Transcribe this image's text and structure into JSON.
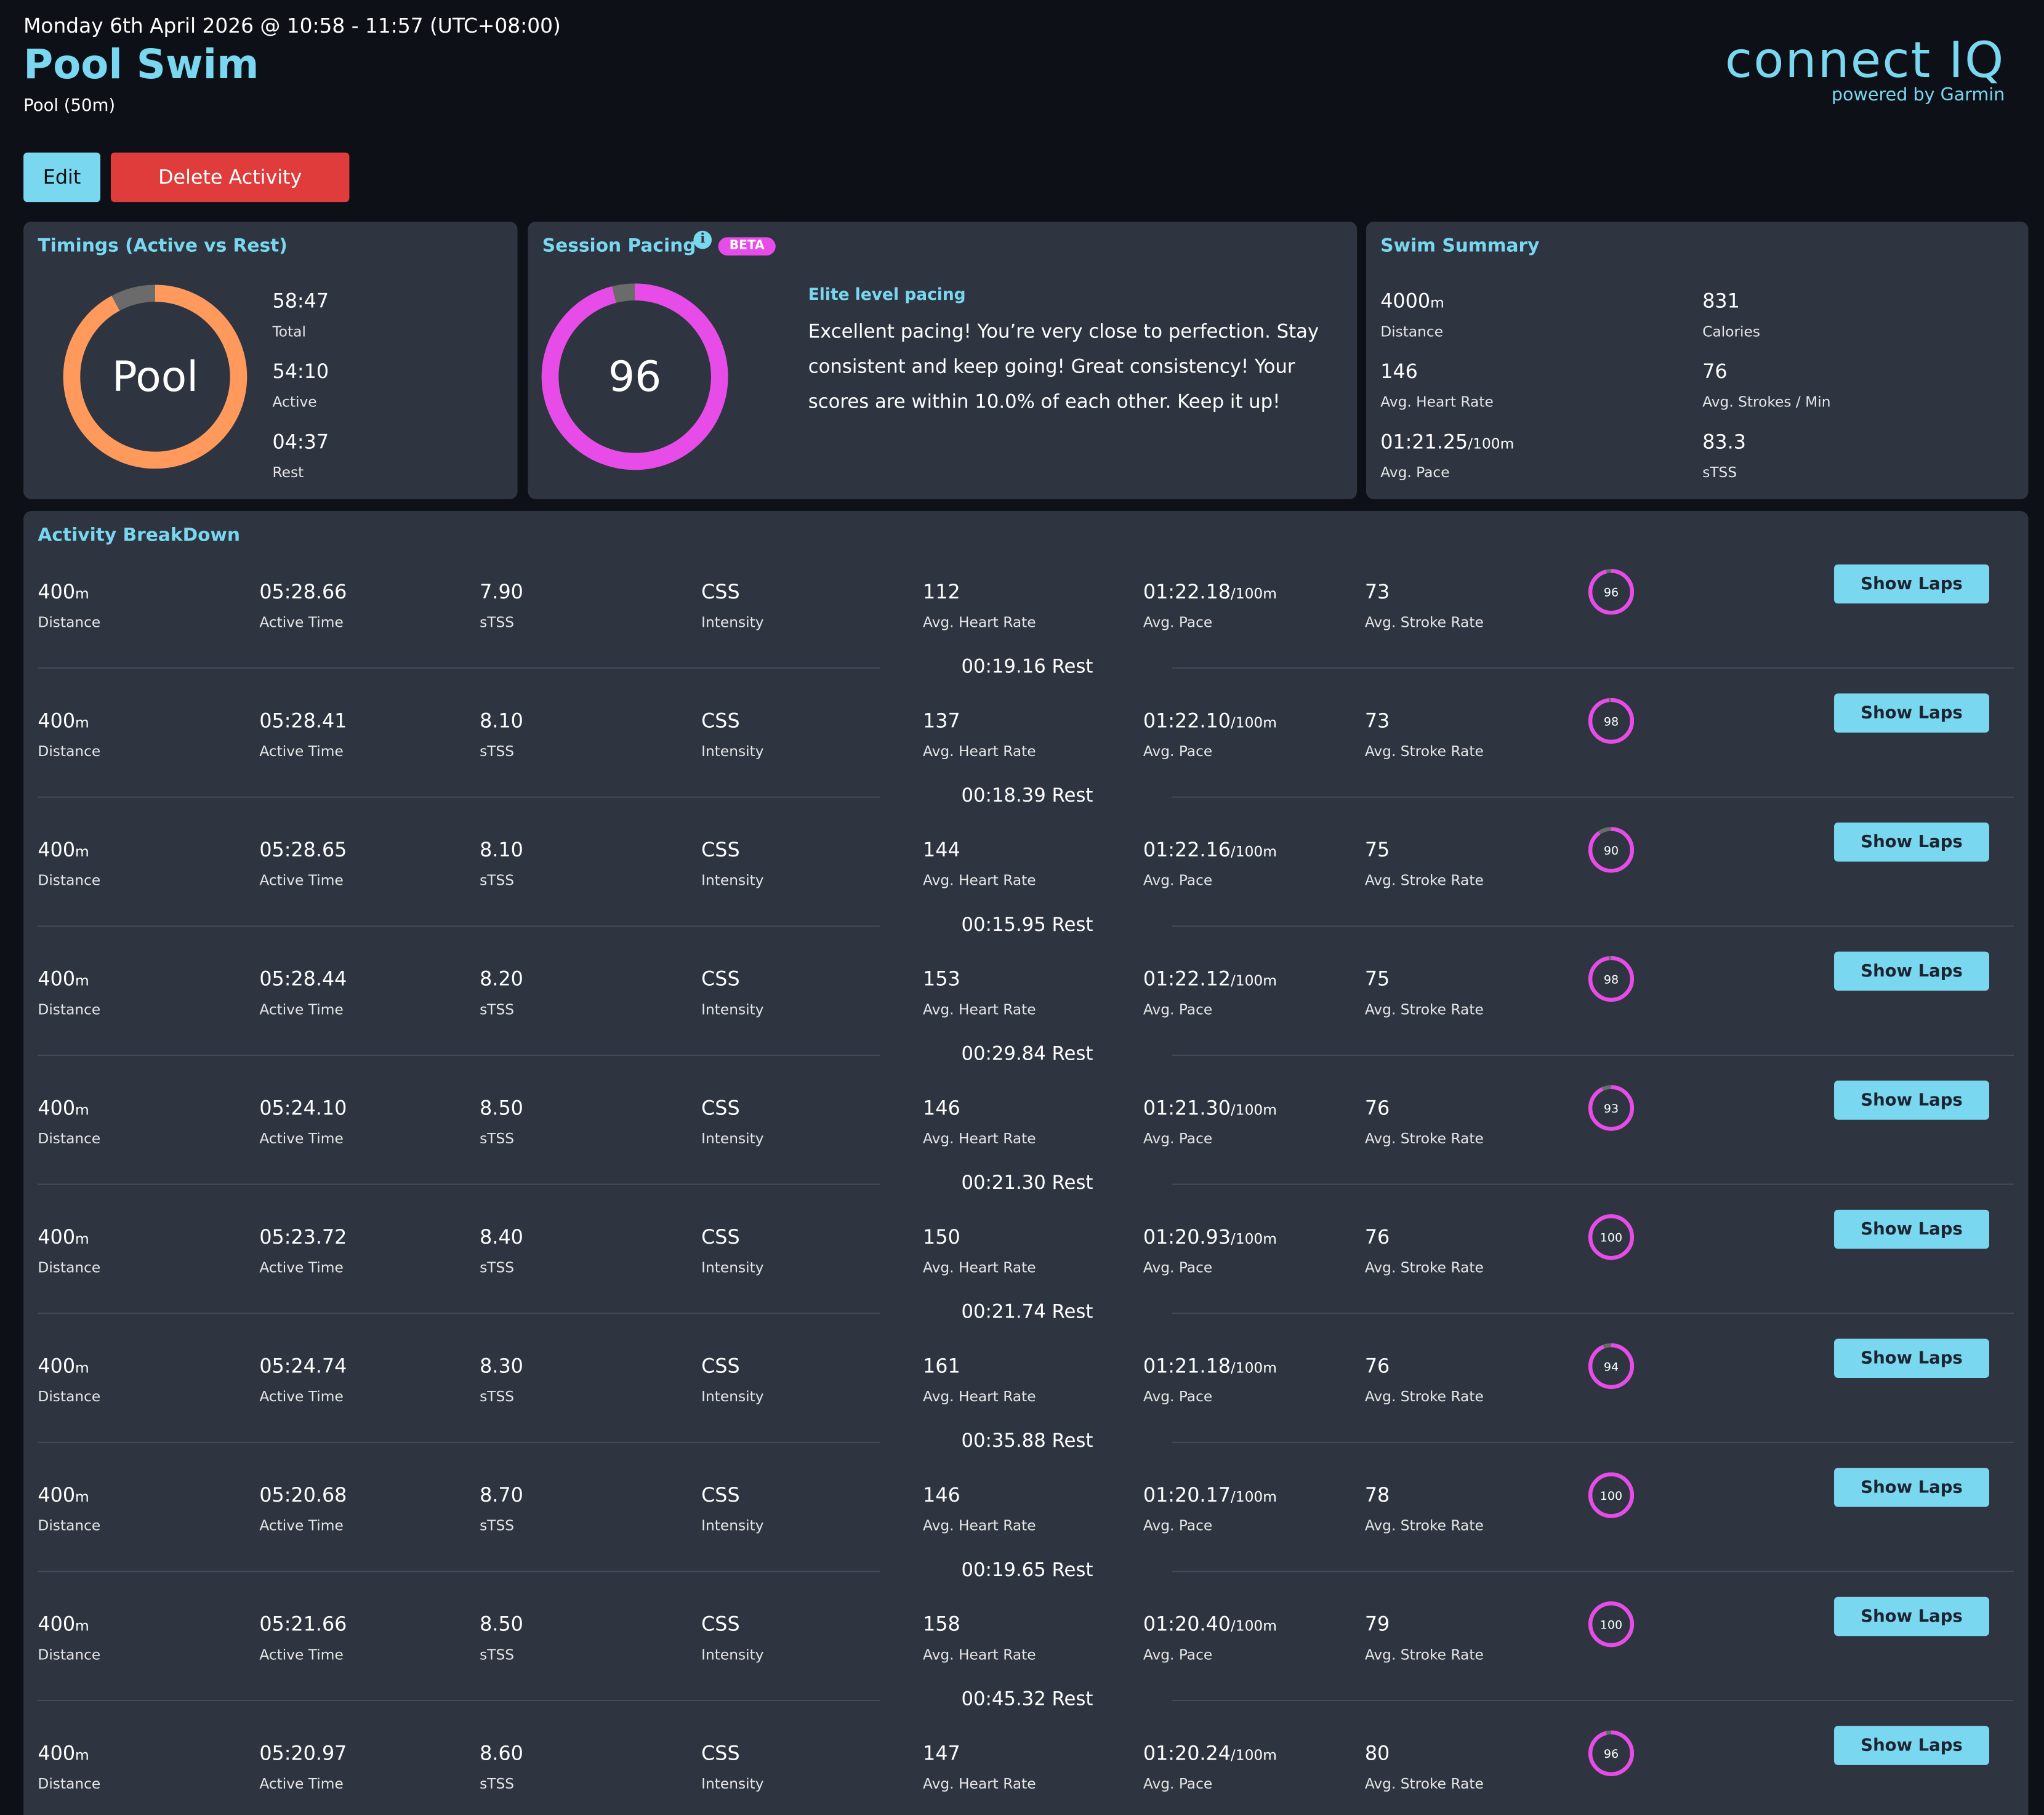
{
  "header": {
    "date": "Monday 6th April 2026 @ 10:58 - 11:57 (UTC+08:00)",
    "title": "Pool Swim",
    "subtitle": "Pool (50m)"
  },
  "logo": {
    "main": "connect IQ",
    "sub": "powered by Garmin"
  },
  "actions": {
    "edit_label": "Edit",
    "delete_label": "Delete Activity"
  },
  "timings": {
    "title": "Timings (Active vs Rest)",
    "center_label": "Pool",
    "active_fraction": 0.921,
    "total": "58:47",
    "total_label": "Total",
    "active": "54:10",
    "active_label": "Active",
    "rest": "04:37",
    "rest_label": "Rest",
    "colors": {
      "active": "#ff9a5c",
      "rest": "#6b6b6b"
    }
  },
  "pacing": {
    "title": "Session Pacing",
    "badge": "BETA",
    "info_icon": "info-icon",
    "score": "96",
    "score_fraction": 0.96,
    "level": "Elite level pacing",
    "message": "Excellent pacing! You’re very close to perfection. Stay consistent and keep going! Great consistency! Your scores are within 10.0% of each other. Keep it up!",
    "color": "#e84ce8"
  },
  "summary": {
    "title": "Swim Summary",
    "distance": "4000",
    "distance_unit": "m",
    "distance_label": "Distance",
    "calories": "831",
    "calories_label": "Calories",
    "hr": "146",
    "hr_label": "Avg. Heart Rate",
    "strokes": "76",
    "strokes_label": "Avg. Strokes / Min",
    "pace": "01:21.25",
    "pace_unit": "/100m",
    "pace_label": "Avg. Pace",
    "stss": "83.3",
    "stss_label": "sTSS"
  },
  "breakdown": {
    "title": "Activity BreakDown",
    "labels": {
      "distance": "Distance",
      "active_time": "Active Time",
      "stss": "sTSS",
      "intensity": "Intensity",
      "hr": "Avg. Heart Rate",
      "pace": "Avg. Pace",
      "stroke": "Avg. Stroke Rate",
      "show_laps": "Show Laps",
      "distance_unit": "m",
      "pace_unit": "/100m",
      "rest_suffix": "Rest"
    },
    "rows": [
      {
        "distance": "400",
        "time": "05:28.66",
        "stss": "7.90",
        "intensity": "CSS",
        "hr": "112",
        "pace": "01:22.18",
        "stroke": "73",
        "score": "96",
        "rest": "00:19.16"
      },
      {
        "distance": "400",
        "time": "05:28.41",
        "stss": "8.10",
        "intensity": "CSS",
        "hr": "137",
        "pace": "01:22.10",
        "stroke": "73",
        "score": "98",
        "rest": "00:18.39"
      },
      {
        "distance": "400",
        "time": "05:28.65",
        "stss": "8.10",
        "intensity": "CSS",
        "hr": "144",
        "pace": "01:22.16",
        "stroke": "75",
        "score": "90",
        "rest": "00:15.95"
      },
      {
        "distance": "400",
        "time": "05:28.44",
        "stss": "8.20",
        "intensity": "CSS",
        "hr": "153",
        "pace": "01:22.12",
        "stroke": "75",
        "score": "98",
        "rest": "00:29.84"
      },
      {
        "distance": "400",
        "time": "05:24.10",
        "stss": "8.50",
        "intensity": "CSS",
        "hr": "146",
        "pace": "01:21.30",
        "stroke": "76",
        "score": "93",
        "rest": "00:21.30"
      },
      {
        "distance": "400",
        "time": "05:23.72",
        "stss": "8.40",
        "intensity": "CSS",
        "hr": "150",
        "pace": "01:20.93",
        "stroke": "76",
        "score": "100",
        "rest": "00:21.74"
      },
      {
        "distance": "400",
        "time": "05:24.74",
        "stss": "8.30",
        "intensity": "CSS",
        "hr": "161",
        "pace": "01:21.18",
        "stroke": "76",
        "score": "94",
        "rest": "00:35.88"
      },
      {
        "distance": "400",
        "time": "05:20.68",
        "stss": "8.70",
        "intensity": "CSS",
        "hr": "146",
        "pace": "01:20.17",
        "stroke": "78",
        "score": "100",
        "rest": "00:19.65"
      },
      {
        "distance": "400",
        "time": "05:21.66",
        "stss": "8.50",
        "intensity": "CSS",
        "hr": "158",
        "pace": "01:20.40",
        "stroke": "79",
        "score": "100",
        "rest": "00:45.32"
      },
      {
        "distance": "400",
        "time": "05:20.97",
        "stss": "8.60",
        "intensity": "CSS",
        "hr": "147",
        "pace": "01:20.24",
        "stroke": "80",
        "score": "96",
        "rest": ""
      }
    ]
  }
}
